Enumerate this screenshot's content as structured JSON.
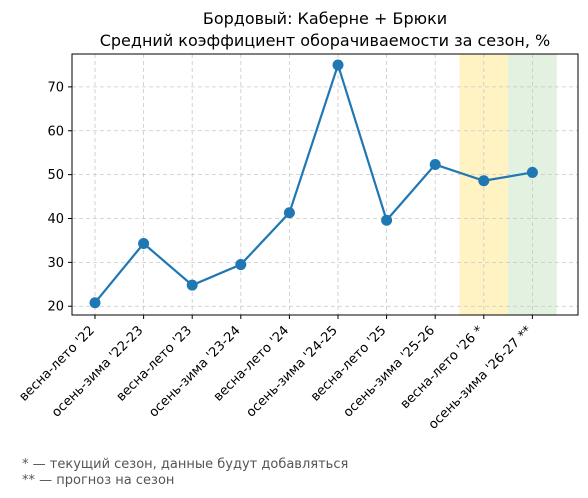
{
  "chart_data": {
    "type": "line",
    "title_line1": "Бордовый: Каберне + Брюки",
    "title_line2": "Средний коэффициент оборачиваемости за сезон, %",
    "categories": [
      "весна-лето '22",
      "осень-зима '22-23",
      "весна-лето '23",
      "осень-зима '23-24",
      "весна-лето '24",
      "осень-зима '24-25",
      "весна-лето '25",
      "осень-зима '25-26",
      "весна-лето '26 *",
      "осень-зима '26-27 **"
    ],
    "values": [
      20.8,
      34.3,
      24.8,
      29.5,
      41.3,
      75.0,
      39.6,
      52.3,
      48.6,
      50.5
    ],
    "ylim": [
      18,
      77.5
    ],
    "yticks": [
      20,
      30,
      40,
      50,
      60,
      70
    ],
    "grid": true,
    "line_color": "#1f77b4",
    "highlight_current": {
      "category_index": 8,
      "color": "#fff3c4"
    },
    "highlight_forecast": {
      "category_index": 9,
      "color": "#e3f1e0"
    }
  },
  "notes": {
    "current": "* — текущий сезон, данные будут добавляться",
    "forecast": "** — прогноз на сезон"
  }
}
